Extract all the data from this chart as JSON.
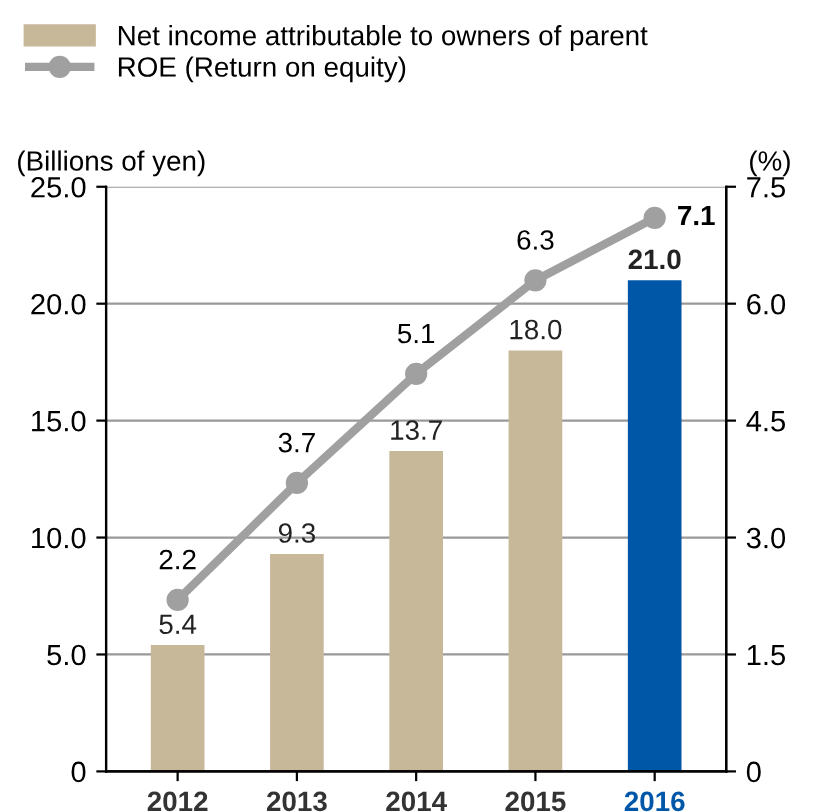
{
  "chart_data": {
    "type": "bar",
    "categories": [
      "2012",
      "2013",
      "2014",
      "2015",
      "2016"
    ],
    "ylabel": "(Billions of yen)",
    "y2label": "(%)",
    "series": [
      {
        "name": "Net income attributable to owners of parent",
        "colors": [
          "#c8b89a",
          "#c8b89a",
          "#c8b89a",
          "#c8b89a",
          "#0057a8"
        ],
        "values": [
          5.4,
          9.3,
          13.7,
          18.0,
          21.0
        ],
        "value_labels": [
          "5.4",
          "9.3",
          "13.7",
          "18.0",
          "21.0"
        ]
      },
      {
        "name": "ROE (Return on equity)",
        "type": "line",
        "axis": "y2",
        "color": "#a0a0a0",
        "marker": "circle",
        "values": [
          2.2,
          3.7,
          5.1,
          6.3,
          7.1
        ]
      }
    ],
    "ylim": [
      0,
      25
    ],
    "yticks": [
      {
        "value": 0,
        "label": "0"
      },
      {
        "value": 5,
        "label": "5.0"
      },
      {
        "value": 10,
        "label": "10.0"
      },
      {
        "value": 15,
        "label": "15.0"
      },
      {
        "value": 20,
        "label": "20.0"
      },
      {
        "value": 25,
        "label": "25.0"
      }
    ],
    "y2lim": [
      0,
      7.5
    ],
    "y2ticks": [
      {
        "value": 0,
        "label": "0"
      },
      {
        "value": 1.5,
        "label": "1.5"
      },
      {
        "value": 3,
        "label": "3.0"
      },
      {
        "value": 4.5,
        "label": "4.5"
      },
      {
        "value": 6,
        "label": "6.0"
      },
      {
        "value": 7.5,
        "label": "7.5"
      }
    ],
    "grid": "y",
    "legend": "top left",
    "data_labels": true
  }
}
